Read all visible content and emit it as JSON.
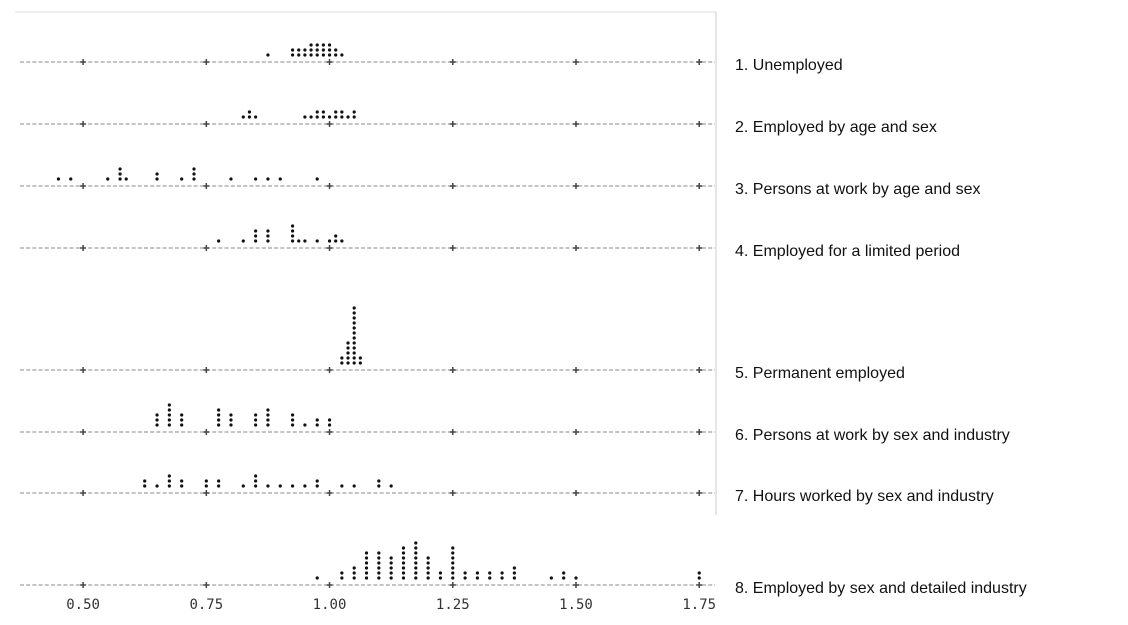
{
  "chart_data": {
    "type": "dot",
    "xlim": [
      0.372,
      1.782
    ],
    "xticks": [
      {
        "value": 0.5,
        "label": "0.50"
      },
      {
        "value": 0.75,
        "label": "0.75"
      },
      {
        "value": 1.0,
        "label": "1.00"
      },
      {
        "value": 1.25,
        "label": "1.25"
      },
      {
        "value": 1.5,
        "label": "1.50"
      },
      {
        "value": 1.75,
        "label": "1.75"
      }
    ],
    "color": "#111111",
    "panels": [
      {
        "name": "1. Unemployed",
        "values": [
          0.875,
          0.925,
          0.925,
          0.9375,
          0.9375,
          0.95,
          0.95,
          0.9625,
          0.9625,
          0.9625,
          0.975,
          0.975,
          0.975,
          0.9875,
          0.9875,
          0.9875,
          1.0,
          1.0,
          1.0,
          1.0125,
          1.0125,
          1.025
        ]
      },
      {
        "name": "2. Employed by age and sex",
        "values": [
          0.825,
          0.8375,
          0.8375,
          0.85,
          0.95,
          0.9625,
          0.975,
          0.975,
          0.9875,
          0.9875,
          1.0,
          1.0125,
          1.0125,
          1.025,
          1.025,
          1.0375,
          1.05,
          1.05
        ]
      },
      {
        "name": "3. Persons at work by age and sex",
        "values": [
          0.45,
          0.475,
          0.55,
          0.575,
          0.575,
          0.575,
          0.5875,
          0.65,
          0.65,
          0.7,
          0.725,
          0.725,
          0.725,
          0.8,
          0.85,
          0.875,
          0.9,
          0.975
        ]
      },
      {
        "name": "4. Employed for a limited period",
        "values": [
          0.775,
          0.825,
          0.85,
          0.85,
          0.85,
          0.875,
          0.875,
          0.875,
          0.925,
          0.925,
          0.925,
          0.925,
          0.9375,
          0.95,
          0.975,
          1.0,
          1.0125,
          1.0125,
          1.025
        ]
      },
      {
        "name": "5. Permanent employed",
        "values": [
          1.025,
          1.025,
          1.0375,
          1.0375,
          1.0375,
          1.0375,
          1.0375,
          1.05,
          1.05,
          1.05,
          1.05,
          1.05,
          1.05,
          1.05,
          1.05,
          1.05,
          1.05,
          1.05,
          1.05,
          1.0625,
          1.0625
        ]
      },
      {
        "name": "6. Persons at work by sex and industry",
        "values": [
          0.65,
          0.65,
          0.65,
          0.675,
          0.675,
          0.675,
          0.675,
          0.675,
          0.7,
          0.7,
          0.7,
          0.775,
          0.775,
          0.775,
          0.775,
          0.8,
          0.8,
          0.8,
          0.85,
          0.85,
          0.85,
          0.875,
          0.875,
          0.875,
          0.875,
          0.925,
          0.925,
          0.925,
          0.95,
          0.975,
          0.975,
          1.0,
          1.0
        ]
      },
      {
        "name": "7. Hours worked by sex and industry",
        "values": [
          0.625,
          0.625,
          0.65,
          0.675,
          0.675,
          0.675,
          0.7,
          0.7,
          0.75,
          0.75,
          0.775,
          0.775,
          0.825,
          0.85,
          0.85,
          0.85,
          0.875,
          0.9,
          0.925,
          0.95,
          0.975,
          0.975,
          1.025,
          1.05,
          1.1,
          1.1,
          1.125
        ]
      },
      {
        "name": "8. Employed by sex and detailed industry",
        "values": [
          0.975,
          1.025,
          1.025,
          1.05,
          1.05,
          1.05,
          1.075,
          1.075,
          1.075,
          1.075,
          1.075,
          1.075,
          1.1,
          1.1,
          1.1,
          1.1,
          1.1,
          1.1,
          1.125,
          1.125,
          1.125,
          1.125,
          1.125,
          1.15,
          1.15,
          1.15,
          1.15,
          1.15,
          1.15,
          1.15,
          1.175,
          1.175,
          1.175,
          1.175,
          1.175,
          1.175,
          1.175,
          1.175,
          1.2,
          1.2,
          1.2,
          1.2,
          1.2,
          1.225,
          1.225,
          1.25,
          1.25,
          1.25,
          1.25,
          1.25,
          1.25,
          1.25,
          1.275,
          1.275,
          1.3,
          1.3,
          1.325,
          1.325,
          1.35,
          1.35,
          1.375,
          1.375,
          1.375,
          1.45,
          1.475,
          1.475,
          1.5,
          1.75,
          1.75
        ]
      }
    ]
  }
}
